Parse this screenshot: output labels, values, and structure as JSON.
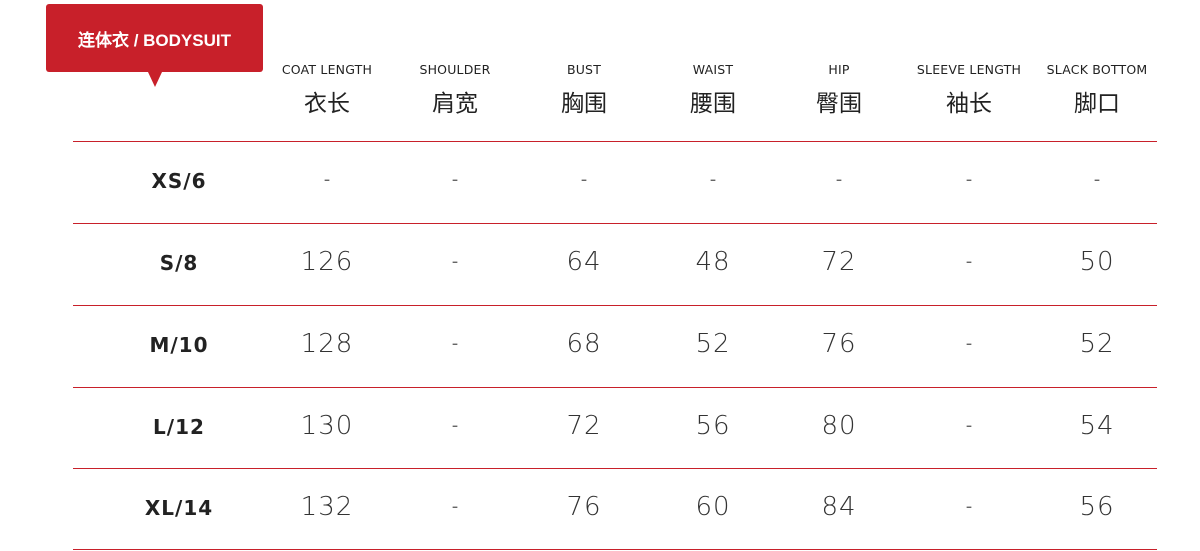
{
  "title": "连体衣 / BODYSUIT",
  "accent_color": "#c8202a",
  "columns": [
    {
      "en": "COAT LENGTH",
      "zh": "衣长"
    },
    {
      "en": "SHOULDER",
      "zh": "肩宽"
    },
    {
      "en": "BUST",
      "zh": "胸围"
    },
    {
      "en": "WAIST",
      "zh": "腰围"
    },
    {
      "en": "HIP",
      "zh": "臀围"
    },
    {
      "en": "SLEEVE LENGTH",
      "zh": "袖长"
    },
    {
      "en": "SLACK BOTTOM",
      "zh": "脚口"
    }
  ],
  "rows": [
    {
      "size": "XS/6",
      "values": [
        "-",
        "-",
        "-",
        "-",
        "-",
        "-",
        "-"
      ]
    },
    {
      "size": "S/8",
      "values": [
        "126",
        "-",
        "64",
        "48",
        "72",
        "-",
        "50"
      ]
    },
    {
      "size": "M/10",
      "values": [
        "128",
        "-",
        "68",
        "52",
        "76",
        "-",
        "52"
      ]
    },
    {
      "size": "L/12",
      "values": [
        "130",
        "-",
        "72",
        "56",
        "80",
        "-",
        "54"
      ]
    },
    {
      "size": "XL/14",
      "values": [
        "132",
        "-",
        "76",
        "60",
        "84",
        "-",
        "56"
      ]
    }
  ]
}
